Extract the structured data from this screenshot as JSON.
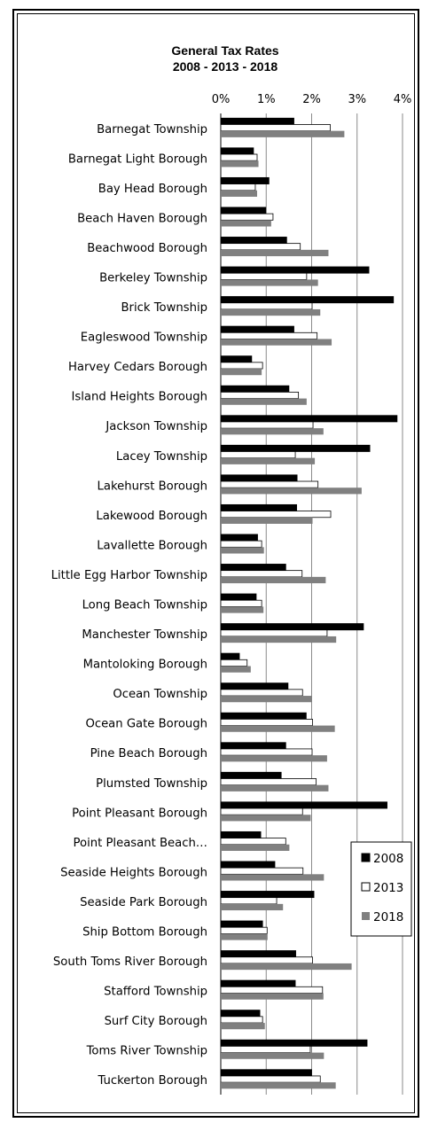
{
  "chart_data": {
    "type": "bar",
    "orientation": "horizontal",
    "title": "General Tax Rates",
    "subtitle": "2008 - 2013 - 2018",
    "xlim": [
      0,
      4
    ],
    "xticks": [
      "0%",
      "1%",
      "2%",
      "3%",
      "4%"
    ],
    "grid": true,
    "legend_position": "bottom-right",
    "categories": [
      "Barnegat Township",
      "Barnegat Light Borough",
      "Bay Head Borough",
      "Beach Haven Borough",
      "Beachwood Borough",
      "Berkeley Township",
      "Brick Township",
      "Eagleswood Township",
      "Harvey Cedars Borough",
      "Island Heights Borough",
      "Jackson Township",
      "Lacey Township",
      "Lakehurst Borough",
      "Lakewood Borough",
      "Lavallette Borough",
      "Little Egg Harbor Township",
      "Long Beach Township",
      "Manchester Township",
      "Mantoloking Borough",
      "Ocean Township",
      "Ocean Gate Borough",
      "Pine Beach Borough",
      "Plumsted Township",
      "Point Pleasant Borough",
      "Point Pleasant Beach…",
      "Seaside Heights Borough",
      "Seaside Park Borough",
      "Ship Bottom Borough",
      "South Toms River Borough",
      "Stafford Township",
      "Surf City Borough",
      "Toms River Township",
      "Tuckerton Borough"
    ],
    "series": [
      {
        "name": "2008",
        "color": "#000000",
        "values": [
          1.61,
          0.72,
          1.06,
          0.99,
          1.45,
          3.26,
          3.8,
          1.61,
          0.68,
          1.5,
          3.88,
          3.28,
          1.68,
          1.67,
          0.81,
          1.43,
          0.78,
          3.14,
          0.41,
          1.48,
          1.88,
          1.43,
          1.33,
          3.66,
          0.88,
          1.19,
          2.05,
          0.92,
          1.65,
          1.64,
          0.86,
          3.22,
          2.0
        ]
      },
      {
        "name": "2013",
        "color": "#ffffff",
        "values": [
          2.41,
          0.8,
          0.76,
          1.15,
          1.75,
          1.89,
          2.01,
          2.12,
          0.92,
          1.71,
          2.03,
          1.64,
          2.14,
          2.42,
          0.9,
          1.79,
          0.9,
          2.34,
          0.58,
          1.8,
          2.02,
          2.01,
          2.1,
          1.8,
          1.43,
          1.81,
          1.23,
          1.02,
          2.02,
          2.24,
          0.92,
          1.97,
          2.19
        ]
      },
      {
        "name": "2018",
        "color": "#808080",
        "values": [
          2.72,
          0.83,
          0.8,
          1.11,
          2.37,
          2.14,
          2.19,
          2.44,
          0.9,
          1.89,
          2.26,
          2.07,
          3.1,
          2.02,
          0.95,
          2.31,
          0.94,
          2.54,
          0.66,
          2.01,
          2.51,
          2.34,
          2.37,
          1.98,
          1.51,
          2.27,
          1.37,
          1.03,
          2.88,
          2.26,
          0.97,
          2.27,
          2.53
        ]
      }
    ]
  }
}
